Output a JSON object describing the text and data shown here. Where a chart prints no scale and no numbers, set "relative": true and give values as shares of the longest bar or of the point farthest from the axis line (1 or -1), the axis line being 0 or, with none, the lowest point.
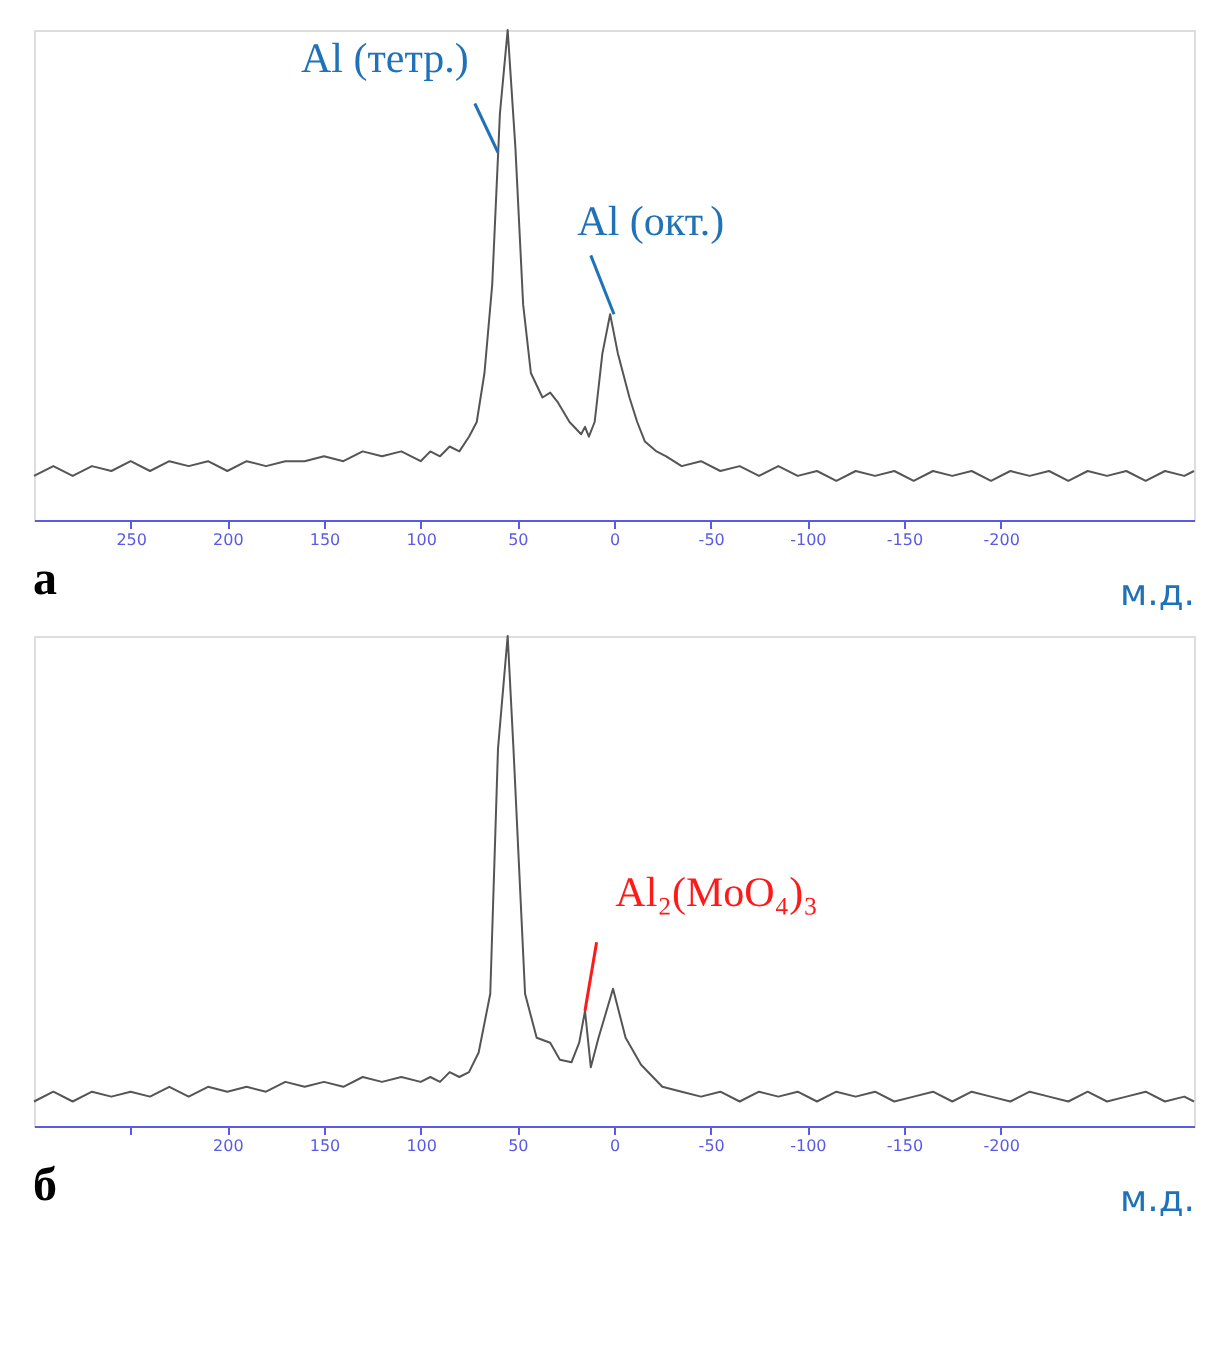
{
  "chart_data": [
    {
      "type": "line",
      "title": "а",
      "xlabel": "м.д.",
      "relative": true,
      "xlim": [
        300,
        -300
      ],
      "xticks": [
        250,
        200,
        150,
        100,
        50,
        0,
        -50,
        -100,
        -150,
        -200
      ],
      "grid": false,
      "marker": "none",
      "line_style": "solid",
      "annotations": [
        {
          "text": "Al (тетр.)",
          "x": 60,
          "y": 0.75
        },
        {
          "text": "Al (окт.)",
          "x": 0,
          "y": 0.42
        }
      ],
      "series": [
        {
          "color": "#555555",
          "x": [
            300,
            290,
            280,
            270,
            260,
            250,
            240,
            230,
            220,
            210,
            200,
            190,
            180,
            170,
            160,
            150,
            140,
            130,
            120,
            110,
            100,
            95,
            90,
            85,
            80,
            75,
            71,
            67,
            63,
            59,
            55,
            51,
            47,
            43,
            37,
            33,
            29,
            23,
            17,
            15,
            13,
            10,
            6,
            2,
            -2,
            -8,
            -12,
            -16,
            -22,
            -27,
            -35,
            -45,
            -55,
            -65,
            -75,
            -85,
            -95,
            -105,
            -115,
            -125,
            -135,
            -145,
            -155,
            -165,
            -175,
            -185,
            -195,
            -205,
            -215,
            -225,
            -235,
            -245,
            -255,
            -265,
            -275,
            -285,
            -295,
            -300
          ],
          "values": [
            0.09,
            0.11,
            0.09,
            0.11,
            0.1,
            0.12,
            0.1,
            0.12,
            0.11,
            0.12,
            0.1,
            0.12,
            0.11,
            0.12,
            0.12,
            0.13,
            0.12,
            0.14,
            0.13,
            0.14,
            0.12,
            0.14,
            0.13,
            0.15,
            0.14,
            0.17,
            0.2,
            0.3,
            0.48,
            0.83,
            1,
            0.76,
            0.44,
            0.3,
            0.25,
            0.26,
            0.24,
            0.2,
            0.175,
            0.19,
            0.17,
            0.2,
            0.34,
            0.42,
            0.34,
            0.25,
            0.2,
            0.16,
            0.14,
            0.13,
            0.11,
            0.12,
            0.1,
            0.11,
            0.09,
            0.11,
            0.09,
            0.1,
            0.08,
            0.1,
            0.09,
            0.1,
            0.08,
            0.1,
            0.09,
            0.1,
            0.08,
            0.1,
            0.09,
            0.1,
            0.08,
            0.1,
            0.09,
            0.1,
            0.08,
            0.1,
            0.09,
            0.1
          ]
        }
      ]
    },
    {
      "type": "line",
      "title": "б",
      "xlabel": "м.д.",
      "relative": true,
      "xlim": [
        300,
        -300
      ],
      "xticks": [
        {
          "value": 250,
          "label": null
        },
        200,
        150,
        100,
        50,
        0,
        -50,
        -100,
        -150,
        -200
      ],
      "grid": false,
      "marker": "none",
      "line_style": "solid",
      "annotations": [
        {
          "text": "Al₂(MoO₄)₃",
          "x": 15,
          "y": 0.235
        }
      ],
      "series": [
        {
          "color": "#555555",
          "x": [
            300,
            290,
            280,
            270,
            260,
            250,
            240,
            230,
            220,
            210,
            200,
            190,
            180,
            170,
            160,
            150,
            140,
            130,
            120,
            110,
            100,
            95,
            90,
            85,
            80,
            75,
            70,
            64,
            60,
            55,
            52,
            46,
            40,
            33,
            28,
            22,
            18,
            15,
            12,
            8,
            0.5,
            -6,
            -14,
            -25,
            -35,
            -45,
            -55,
            -65,
            -75,
            -85,
            -95,
            -105,
            -115,
            -125,
            -135,
            -145,
            -155,
            -165,
            -175,
            -185,
            -195,
            -205,
            -215,
            -225,
            -235,
            -245,
            -255,
            -265,
            -275,
            -285,
            -295,
            -300
          ],
          "values": [
            0.05,
            0.07,
            0.05,
            0.07,
            0.06,
            0.07,
            0.06,
            0.08,
            0.06,
            0.08,
            0.07,
            0.08,
            0.07,
            0.09,
            0.08,
            0.09,
            0.08,
            0.1,
            0.09,
            0.1,
            0.09,
            0.1,
            0.09,
            0.11,
            0.1,
            0.11,
            0.15,
            0.27,
            0.77,
            1,
            0.77,
            0.27,
            0.18,
            0.17,
            0.135,
            0.13,
            0.17,
            0.235,
            0.12,
            0.18,
            0.28,
            0.18,
            0.125,
            0.08,
            0.07,
            0.06,
            0.07,
            0.05,
            0.07,
            0.06,
            0.07,
            0.05,
            0.07,
            0.06,
            0.07,
            0.05,
            0.06,
            0.07,
            0.05,
            0.07,
            0.06,
            0.05,
            0.07,
            0.06,
            0.05,
            0.07,
            0.05,
            0.06,
            0.07,
            0.05,
            0.06,
            0.05
          ]
        }
      ]
    }
  ]
}
